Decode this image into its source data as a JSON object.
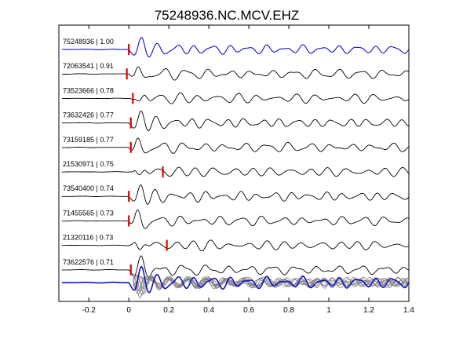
{
  "chart_data": {
    "type": "line",
    "title": "75248936.NC.MCV.EHZ",
    "xlabel": "",
    "ylabel": "",
    "xlim": [
      -0.35,
      1.4
    ],
    "x_ticks": [
      "-0.2",
      "0",
      "0.2",
      "0.4",
      "0.6",
      "0.8",
      "1",
      "1.2",
      "1.4"
    ],
    "grid": false,
    "traces": [
      {
        "label": "75248936 | 1.00",
        "pick": 0.0,
        "color": "#1010c8"
      },
      {
        "label": "72063541 | 0.91",
        "pick": -0.01,
        "color": "#000000"
      },
      {
        "label": "73523666 | 0.78",
        "pick": 0.02,
        "color": "#000000"
      },
      {
        "label": "73632426 | 0.77",
        "pick": 0.01,
        "color": "#000000"
      },
      {
        "label": "73159185 | 0.77",
        "pick": 0.01,
        "color": "#000000"
      },
      {
        "label": "21530971 | 0.75",
        "pick": 0.17,
        "color": "#000000"
      },
      {
        "label": "73540400 | 0.74",
        "pick": 0.0,
        "color": "#000000"
      },
      {
        "label": "71455565 | 0.73",
        "pick": 0.0,
        "color": "#000000"
      },
      {
        "label": "21320116 | 0.73",
        "pick": 0.19,
        "color": "#000000"
      },
      {
        "label": "73622576 | 0.71",
        "pick": 0.01,
        "color": "#000000"
      }
    ],
    "stack": {
      "overlay_color": "#808080",
      "reference_color": "#1010c8"
    },
    "pick_color": "#e00000"
  }
}
